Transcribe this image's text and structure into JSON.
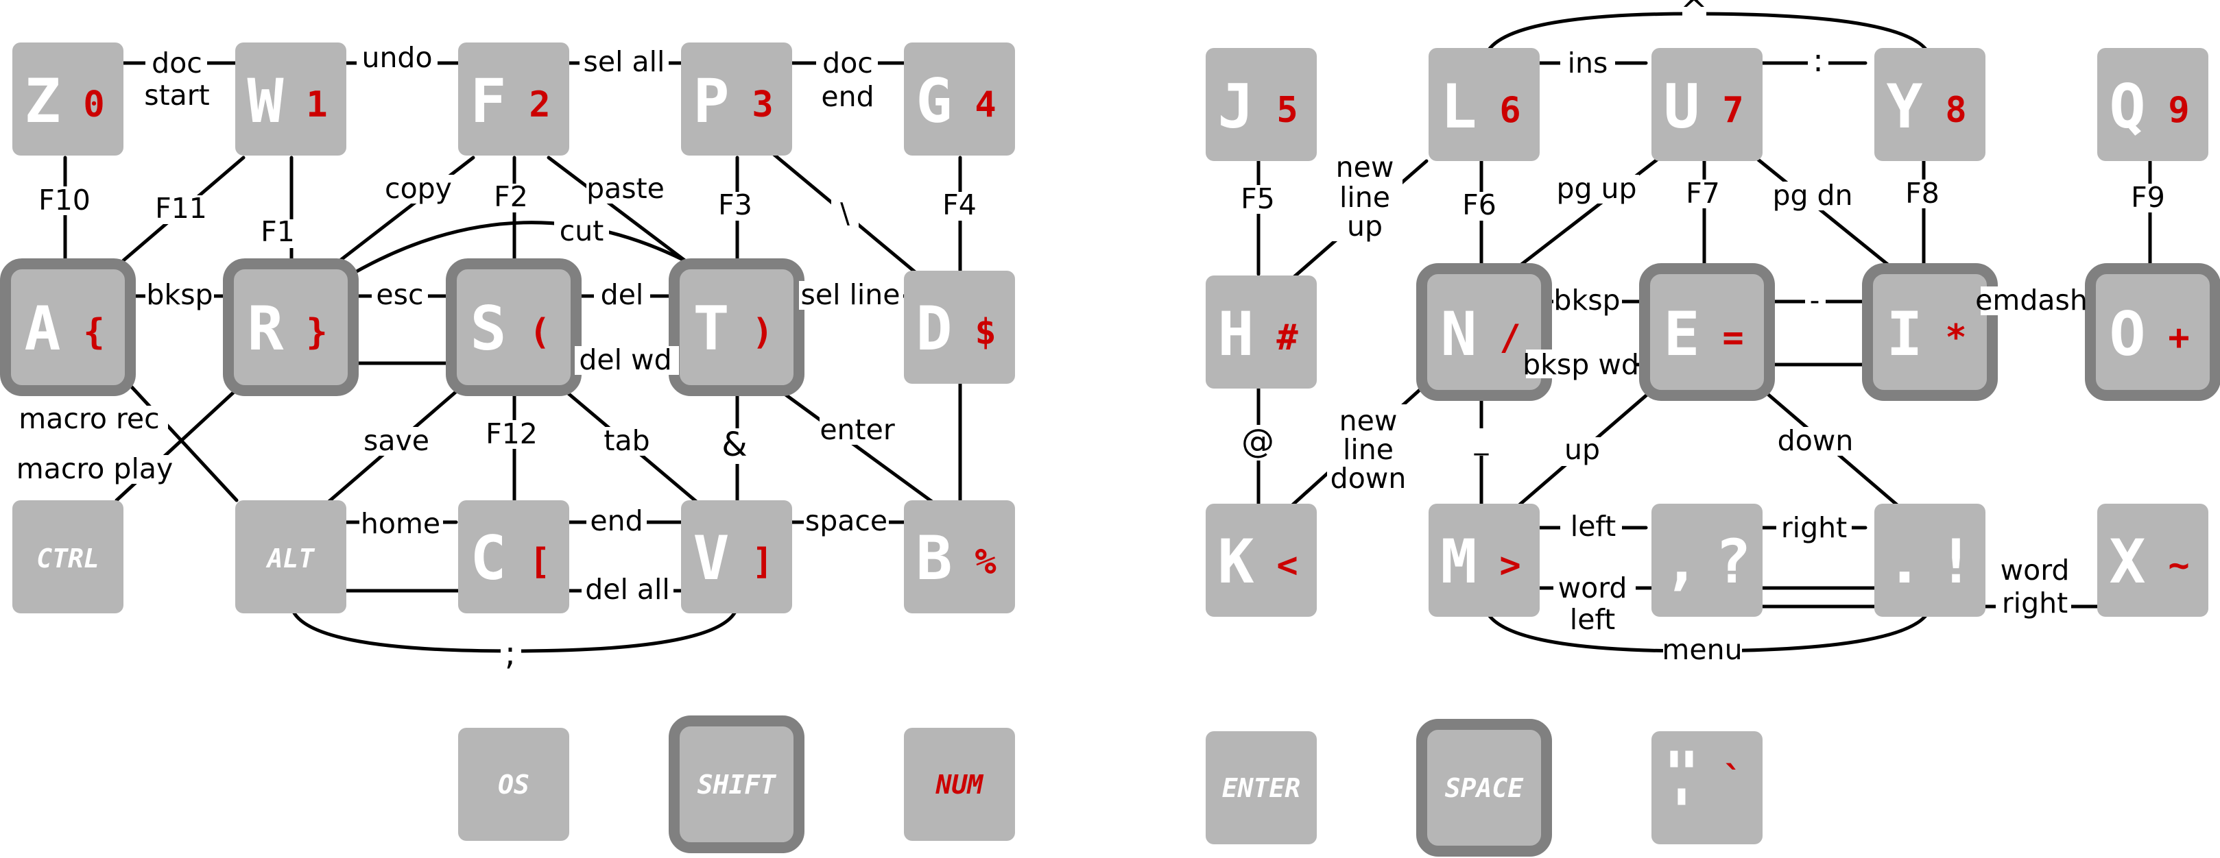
{
  "left_hand": {
    "keys": [
      {
        "id": "z",
        "letter": "Z",
        "symbol": "0"
      },
      {
        "id": "w",
        "letter": "W",
        "symbol": "1"
      },
      {
        "id": "f",
        "letter": "F",
        "symbol": "2"
      },
      {
        "id": "p",
        "letter": "P",
        "symbol": "3"
      },
      {
        "id": "g",
        "letter": "G",
        "symbol": "4"
      },
      {
        "id": "a",
        "letter": "A",
        "symbol": "{"
      },
      {
        "id": "r",
        "letter": "R",
        "symbol": "}"
      },
      {
        "id": "s",
        "letter": "S",
        "symbol": "("
      },
      {
        "id": "t",
        "letter": "T",
        "symbol": ")"
      },
      {
        "id": "d",
        "letter": "D",
        "symbol": "$"
      },
      {
        "id": "c",
        "letter": "C",
        "symbol": "["
      },
      {
        "id": "v",
        "letter": "V",
        "symbol": "]"
      },
      {
        "id": "b",
        "letter": "B",
        "symbol": "%"
      }
    ],
    "modifiers": {
      "ctrl": "CTRL",
      "alt": "ALT"
    },
    "thumbs": {
      "os": "OS",
      "shift": "SHIFT",
      "num": "NUM"
    },
    "combos": {
      "doc_start_1": "doc",
      "doc_start_2": "start",
      "undo": "undo",
      "sel_all": "sel all",
      "doc_end_1": "doc",
      "doc_end_2": "end",
      "f10": "F10",
      "f11": "F11",
      "f1": "F1",
      "copy": "copy",
      "f2": "F2",
      "paste": "paste",
      "f3": "F3",
      "backslash": "\\",
      "f4": "F4",
      "cut": "cut",
      "bksp": "bksp",
      "esc": "esc",
      "del": "del",
      "sel_line": "sel line",
      "del_wd": "del wd",
      "macro_rec": "macro rec",
      "macro_play": "macro play",
      "save": "save",
      "f12": "F12",
      "tab": "tab",
      "ampersand": "&",
      "enter": "enter",
      "home": "home",
      "end": "end",
      "space": "space",
      "del_all": "del all",
      "semicolon": ";"
    }
  },
  "right_hand": {
    "keys": [
      {
        "id": "j",
        "letter": "J",
        "symbol": "5"
      },
      {
        "id": "l",
        "letter": "L",
        "symbol": "6"
      },
      {
        "id": "u",
        "letter": "U",
        "symbol": "7"
      },
      {
        "id": "y",
        "letter": "Y",
        "symbol": "8"
      },
      {
        "id": "q",
        "letter": "Q",
        "symbol": "9"
      },
      {
        "id": "h",
        "letter": "H",
        "symbol": "#"
      },
      {
        "id": "n",
        "letter": "N",
        "symbol": "/"
      },
      {
        "id": "e",
        "letter": "E",
        "symbol": "="
      },
      {
        "id": "i",
        "letter": "I",
        "symbol": "*"
      },
      {
        "id": "o",
        "letter": "O",
        "symbol": "+"
      },
      {
        "id": "k",
        "letter": "K",
        "symbol": "<"
      },
      {
        "id": "m",
        "letter": "M",
        "symbol": ">"
      },
      {
        "id": "comma",
        "letter": ",",
        "symbol": "?"
      },
      {
        "id": "period",
        "letter": ".",
        "symbol": "!"
      },
      {
        "id": "x",
        "letter": "X",
        "symbol": "~"
      }
    ],
    "thumbs": {
      "enter": "ENTER",
      "space": "SPACE",
      "quote": "\"",
      "quote_small": "'",
      "backtick": "`"
    },
    "combos": {
      "caret": "^",
      "ins": "ins",
      "colon": ":",
      "new_line_up_1": "new",
      "new_line_up_2": "line",
      "new_line_up_3": "up",
      "pg_up": "pg up",
      "pg_dn": "pg dn",
      "f5": "F5",
      "f6": "F6",
      "f7": "F7",
      "f8": "F8",
      "f9": "F9",
      "bksp": "bksp",
      "hyphen": "-",
      "emdash": "emdash",
      "bksp_wd": "bksp wd",
      "at": "@",
      "new_line_down_1": "new",
      "new_line_down_2": "line",
      "new_line_down_3": "down",
      "underscore": "_",
      "up": "up",
      "down": "down",
      "left": "left",
      "right": "right",
      "word_left_1": "word",
      "word_left_2": "left",
      "word_right_1": "word",
      "word_right_2": "right",
      "menu": "menu"
    }
  }
}
